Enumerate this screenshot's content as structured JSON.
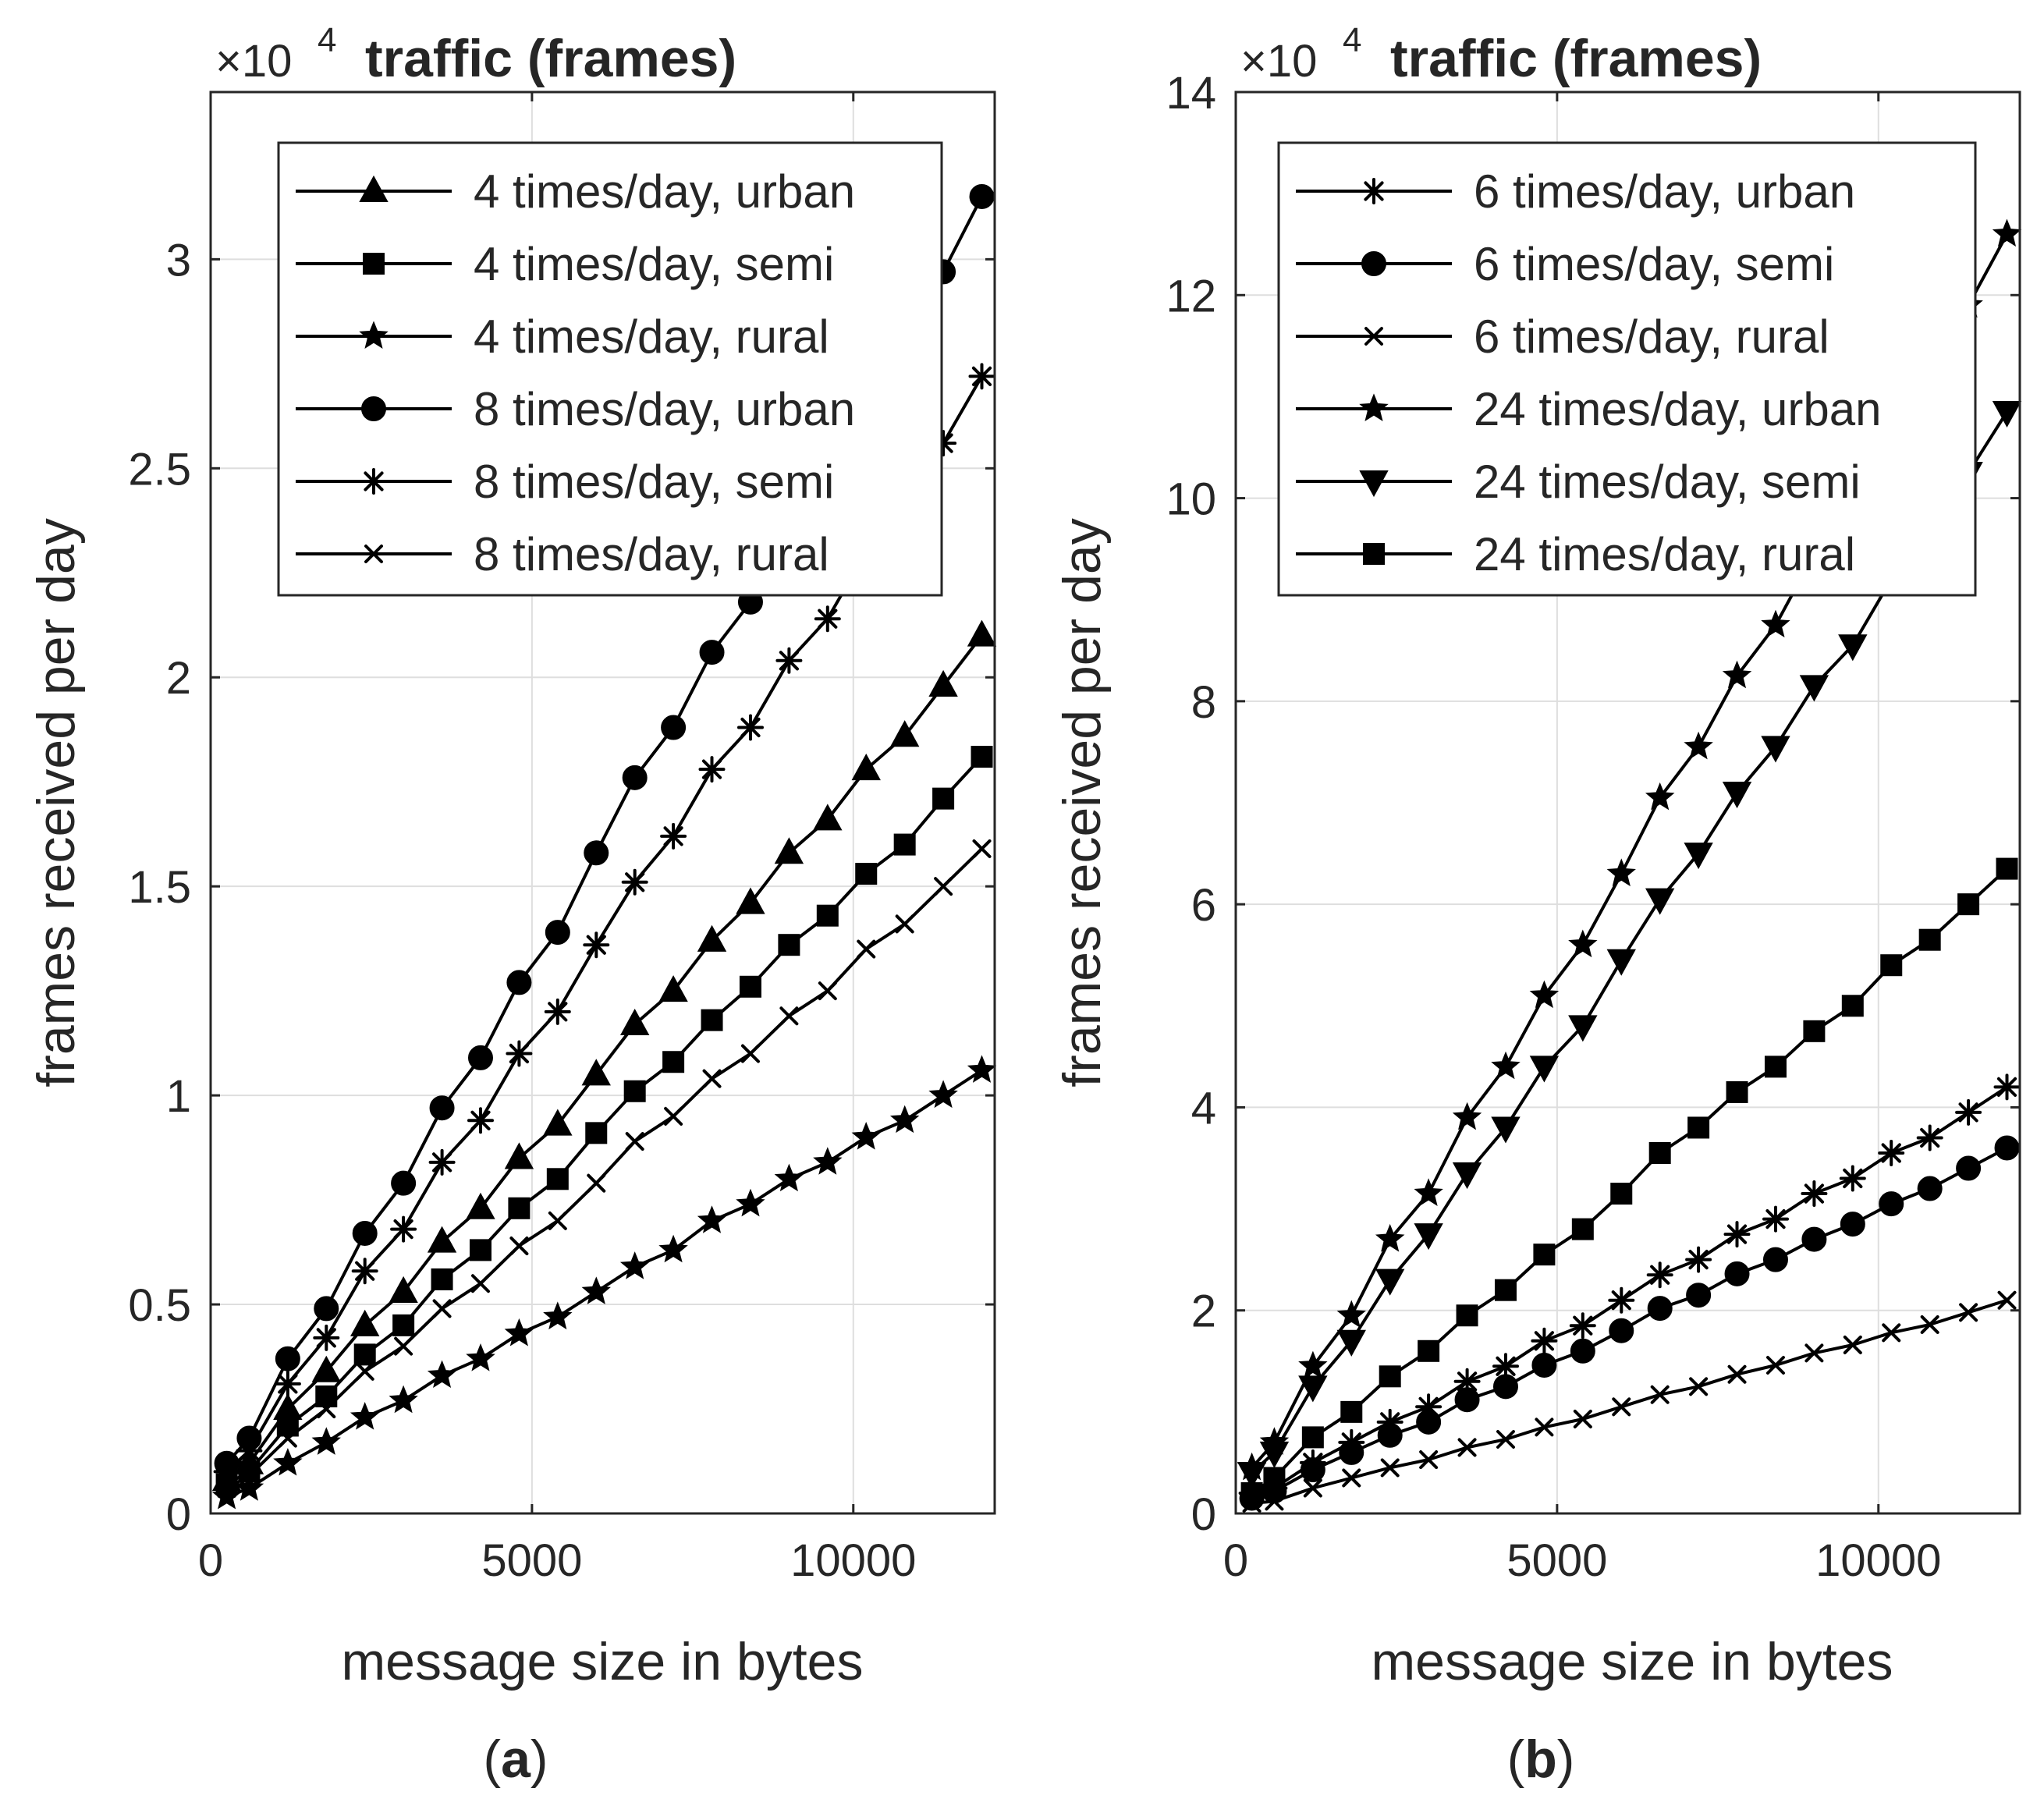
{
  "chart_data": [
    {
      "type": "line",
      "panel": "a",
      "caption": {
        "open": "(",
        "letter": "a",
        "close": ")"
      },
      "title": "traffic (frames)",
      "exponent": {
        "base": "×10",
        "power": "4"
      },
      "xlabel": "message size in bytes",
      "ylabel": "frames received per day",
      "xlim": [
        0,
        12200
      ],
      "ylim": [
        0,
        3.4
      ],
      "xticks": [
        0,
        5000,
        10000
      ],
      "xtick_labels": [
        "0",
        "5000",
        "10000"
      ],
      "yticks": [
        0,
        0.5,
        1,
        1.5,
        2,
        2.5,
        3
      ],
      "ytick_labels": [
        "0",
        "0.5",
        "1",
        "1.5",
        "2",
        "2.5",
        "3"
      ],
      "grid": true,
      "legend_position": "top-right",
      "x": [
        250,
        600,
        1200,
        1800,
        2400,
        3000,
        3600,
        4200,
        4800,
        5400,
        6000,
        6600,
        7200,
        7800,
        8400,
        9000,
        9600,
        10200,
        10800,
        11400,
        12000
      ],
      "series": [
        {
          "name": "4 times/day, urban",
          "marker": "triangle-up",
          "values": [
            0.08,
            0.12,
            0.25,
            0.34,
            0.45,
            0.53,
            0.65,
            0.73,
            0.85,
            0.93,
            1.05,
            1.17,
            1.25,
            1.37,
            1.46,
            1.58,
            1.66,
            1.78,
            1.86,
            1.98,
            2.1
          ]
        },
        {
          "name": "4 times/day, semi",
          "marker": "square",
          "values": [
            0.07,
            0.1,
            0.21,
            0.28,
            0.38,
            0.45,
            0.56,
            0.63,
            0.73,
            0.8,
            0.91,
            1.01,
            1.08,
            1.18,
            1.26,
            1.36,
            1.43,
            1.53,
            1.6,
            1.71,
            1.81
          ]
        },
        {
          "name": "4 times/day, rural",
          "marker": "star5",
          "values": [
            0.04,
            0.06,
            0.12,
            0.17,
            0.23,
            0.27,
            0.33,
            0.37,
            0.43,
            0.47,
            0.53,
            0.59,
            0.63,
            0.7,
            0.74,
            0.8,
            0.84,
            0.9,
            0.94,
            1.0,
            1.06
          ]
        },
        {
          "name": "8 times/day, urban",
          "marker": "circle",
          "values": [
            0.12,
            0.18,
            0.37,
            0.49,
            0.67,
            0.79,
            0.97,
            1.09,
            1.27,
            1.39,
            1.58,
            1.76,
            1.88,
            2.06,
            2.18,
            2.37,
            2.48,
            2.67,
            2.79,
            2.97,
            3.15
          ]
        },
        {
          "name": "8 times/day, semi",
          "marker": "asterisk",
          "values": [
            0.1,
            0.15,
            0.31,
            0.42,
            0.58,
            0.68,
            0.84,
            0.94,
            1.1,
            1.2,
            1.36,
            1.51,
            1.62,
            1.78,
            1.88,
            2.04,
            2.14,
            2.3,
            2.4,
            2.56,
            2.72
          ]
        },
        {
          "name": "8 times/day, rural",
          "marker": "x",
          "values": [
            0.06,
            0.09,
            0.18,
            0.25,
            0.34,
            0.4,
            0.49,
            0.55,
            0.64,
            0.7,
            0.79,
            0.89,
            0.95,
            1.04,
            1.1,
            1.19,
            1.25,
            1.35,
            1.41,
            1.5,
            1.59
          ]
        }
      ]
    },
    {
      "type": "line",
      "panel": "b",
      "caption": {
        "open": "(",
        "letter": "b",
        "close": ")"
      },
      "title": "traffic (frames)",
      "exponent": {
        "base": "×10",
        "power": "4"
      },
      "xlabel": "message size in bytes",
      "ylabel": "frames received per day",
      "xlim": [
        0,
        12200
      ],
      "ylim": [
        0,
        14
      ],
      "xticks": [
        0,
        5000,
        10000
      ],
      "xtick_labels": [
        "0",
        "5000",
        "10000"
      ],
      "yticks": [
        0,
        2,
        4,
        6,
        8,
        10,
        12,
        14
      ],
      "ytick_labels": [
        "0",
        "2",
        "4",
        "6",
        "8",
        "10",
        "12",
        "14"
      ],
      "grid": true,
      "legend_position": "top-left",
      "x": [
        250,
        600,
        1200,
        1800,
        2400,
        3000,
        3600,
        4200,
        4800,
        5400,
        6000,
        6600,
        7200,
        7800,
        8400,
        9000,
        9600,
        10200,
        10800,
        11400,
        12000
      ],
      "series": [
        {
          "name": "6 times/day, urban",
          "marker": "asterisk",
          "values": [
            0.2,
            0.25,
            0.5,
            0.7,
            0.9,
            1.05,
            1.3,
            1.45,
            1.7,
            1.85,
            2.1,
            2.35,
            2.5,
            2.75,
            2.9,
            3.15,
            3.3,
            3.55,
            3.7,
            3.95,
            4.2
          ]
        },
        {
          "name": "6 times/day, semi",
          "marker": "circle",
          "values": [
            0.15,
            0.22,
            0.43,
            0.6,
            0.77,
            0.9,
            1.12,
            1.25,
            1.46,
            1.6,
            1.8,
            2.02,
            2.15,
            2.36,
            2.5,
            2.7,
            2.85,
            3.05,
            3.2,
            3.4,
            3.6
          ]
        },
        {
          "name": "6 times/day, rural",
          "marker": "x",
          "values": [
            0.1,
            0.12,
            0.25,
            0.35,
            0.45,
            0.53,
            0.65,
            0.73,
            0.85,
            0.93,
            1.05,
            1.17,
            1.25,
            1.37,
            1.46,
            1.58,
            1.66,
            1.78,
            1.86,
            1.98,
            2.1
          ]
        },
        {
          "name": "24 times/day, urban",
          "marker": "star5",
          "values": [
            0.45,
            0.7,
            1.45,
            1.95,
            2.7,
            3.15,
            3.9,
            4.4,
            5.1,
            5.6,
            6.3,
            7.05,
            7.55,
            8.25,
            8.75,
            9.45,
            9.95,
            10.7,
            11.2,
            11.9,
            12.6
          ]
        },
        {
          "name": "24 times/day, semi",
          "marker": "triangle-down",
          "values": [
            0.4,
            0.6,
            1.25,
            1.7,
            2.3,
            2.75,
            3.35,
            3.8,
            4.4,
            4.8,
            5.45,
            6.05,
            6.5,
            7.1,
            7.55,
            8.15,
            8.55,
            9.2,
            9.65,
            10.25,
            10.85
          ]
        },
        {
          "name": "24 times/day, rural",
          "marker": "square",
          "values": [
            0.2,
            0.35,
            0.75,
            1.0,
            1.35,
            1.6,
            1.95,
            2.2,
            2.55,
            2.8,
            3.15,
            3.55,
            3.8,
            4.15,
            4.4,
            4.75,
            5.0,
            5.4,
            5.65,
            6.0,
            6.35
          ]
        }
      ]
    }
  ]
}
